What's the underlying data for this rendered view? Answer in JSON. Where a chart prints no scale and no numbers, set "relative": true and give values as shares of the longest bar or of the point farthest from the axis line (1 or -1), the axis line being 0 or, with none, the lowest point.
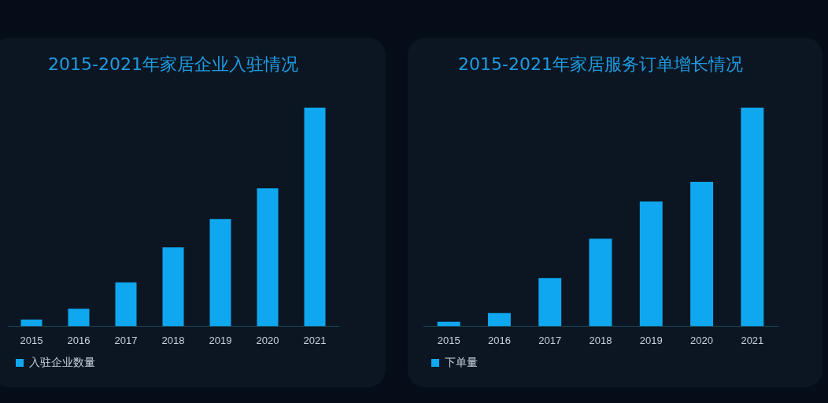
{
  "chart_data": [
    {
      "type": "bar",
      "title": "2015-2021年家居企业入驻情况",
      "categories": [
        "2015",
        "2016",
        "2017",
        "2018",
        "2019",
        "2020",
        "2021"
      ],
      "relative": true,
      "legend": "bottom left",
      "series": [
        {
          "name": "入驻企业数量",
          "color": "#0fa8f0",
          "values": [
            0.03,
            0.08,
            0.2,
            0.36,
            0.49,
            0.63,
            1
          ]
        }
      ]
    },
    {
      "type": "bar",
      "title": "2015-2021年家居服务订单增长情况",
      "categories": [
        "2015",
        "2016",
        "2017",
        "2018",
        "2019",
        "2020",
        "2021"
      ],
      "relative": true,
      "legend": "bottom left",
      "series": [
        {
          "name": "下单量",
          "color": "#0fa8f0",
          "values": [
            0.02,
            0.06,
            0.22,
            0.4,
            0.57,
            0.66,
            1
          ]
        }
      ]
    }
  ]
}
